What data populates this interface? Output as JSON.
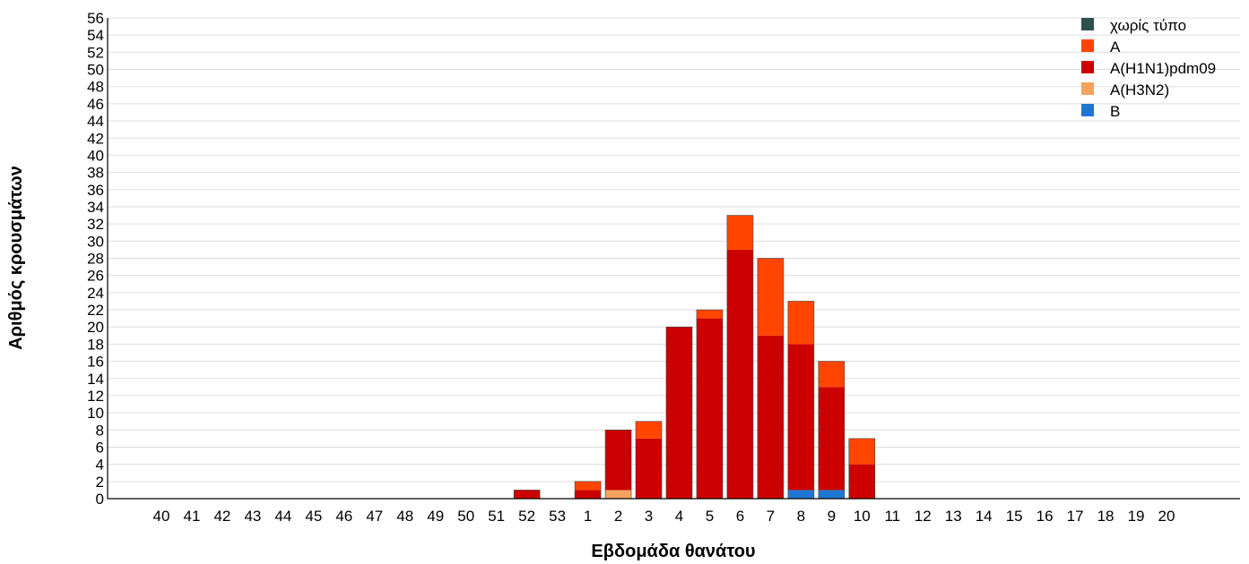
{
  "chart_data": {
    "type": "bar",
    "stacked": true,
    "title": "",
    "xlabel": "Εβδομάδα θανάτου",
    "ylabel": "Αριθμός κρουσμάτων",
    "ylim": [
      0,
      56
    ],
    "ytick_step": 2,
    "grid": "horizontal",
    "legend_position": "top-right",
    "categories": [
      "40",
      "41",
      "42",
      "43",
      "44",
      "45",
      "46",
      "47",
      "48",
      "49",
      "50",
      "51",
      "52",
      "53",
      "1",
      "2",
      "3",
      "4",
      "5",
      "6",
      "7",
      "8",
      "9",
      "10",
      "11",
      "12",
      "13",
      "14",
      "15",
      "16",
      "17",
      "18",
      "19",
      "20"
    ],
    "series": [
      {
        "name": "χωρίς τύπο",
        "color": "#2f4f4f",
        "values": [
          0,
          0,
          0,
          0,
          0,
          0,
          0,
          0,
          0,
          0,
          0,
          0,
          0,
          0,
          0,
          0,
          0,
          0,
          0,
          0,
          0,
          0,
          0,
          0,
          0,
          0,
          0,
          0,
          0,
          0,
          0,
          0,
          0,
          0
        ]
      },
      {
        "name": "A",
        "color": "#ff4500",
        "values": [
          0,
          0,
          0,
          0,
          0,
          0,
          0,
          0,
          0,
          0,
          0,
          0,
          0,
          0,
          1,
          0,
          2,
          0,
          1,
          4,
          9,
          5,
          3,
          3,
          0,
          0,
          0,
          0,
          0,
          0,
          0,
          0,
          0,
          0
        ]
      },
      {
        "name": "A(H1N1)pdm09",
        "color": "#cc0000",
        "values": [
          0,
          0,
          0,
          0,
          0,
          0,
          0,
          0,
          0,
          0,
          0,
          0,
          1,
          0,
          1,
          7,
          7,
          20,
          21,
          29,
          19,
          17,
          12,
          4,
          0,
          0,
          0,
          0,
          0,
          0,
          0,
          0,
          0,
          0
        ]
      },
      {
        "name": "A(H3N2)",
        "color": "#f4a460",
        "values": [
          0,
          0,
          0,
          0,
          0,
          0,
          0,
          0,
          0,
          0,
          0,
          0,
          0,
          0,
          0,
          1,
          0,
          0,
          0,
          0,
          0,
          0,
          0,
          0,
          0,
          0,
          0,
          0,
          0,
          0,
          0,
          0,
          0,
          0
        ]
      },
      {
        "name": "B",
        "color": "#1f77d4",
        "values": [
          0,
          0,
          0,
          0,
          0,
          0,
          0,
          0,
          0,
          0,
          0,
          0,
          0,
          0,
          0,
          0,
          0,
          0,
          0,
          0,
          0,
          1,
          1,
          0,
          0,
          0,
          0,
          0,
          0,
          0,
          0,
          0,
          0,
          0
        ]
      }
    ]
  }
}
